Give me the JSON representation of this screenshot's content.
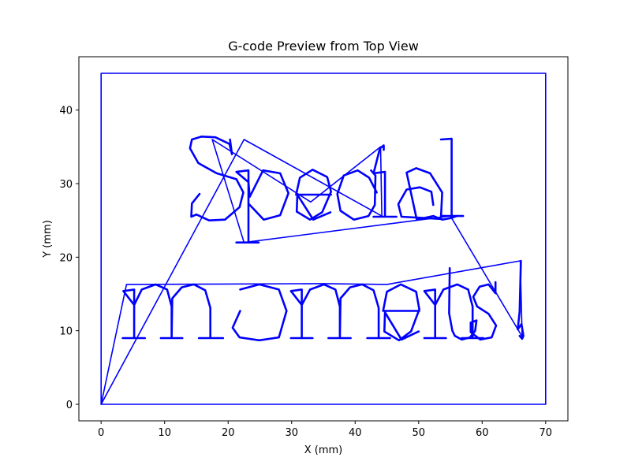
{
  "chart_data": {
    "type": "line",
    "title": "G-code Preview from Top View",
    "xlabel": "X (mm)",
    "ylabel": "Y (mm)",
    "xlim": [
      -3.5,
      73.5
    ],
    "ylim": [
      -2.25,
      47.25
    ],
    "xticks": [
      0,
      10,
      20,
      30,
      40,
      50,
      60,
      70
    ],
    "yticks": [
      0,
      10,
      20,
      30,
      40
    ],
    "grid": false,
    "line_color": "#0000ff",
    "series": [
      {
        "label": "border",
        "x": [
          0,
          70,
          70,
          0,
          0
        ],
        "y": [
          0,
          0,
          45,
          45,
          0
        ]
      },
      {
        "label": "travel moves",
        "x": [
          0,
          4,
          35,
          45,
          66,
          66.3,
          55,
          22.5,
          17.5,
          33,
          44,
          44.2,
          22.5,
          0
        ],
        "y": [
          0,
          16.3,
          16.4,
          16.3,
          19.5,
          9.2,
          25.6,
          22,
          36,
          27.5,
          35,
          25.6,
          36,
          0
        ]
      },
      {
        "label": "path: S",
        "x": [
          15.5,
          14.3,
          14.2,
          15,
          17,
          19.5,
          21.8,
          22.4,
          21.3,
          18.2,
          15.3,
          14,
          14.3,
          15.8,
          18,
          20.2,
          20.6,
          20.3
        ],
        "y": [
          28.6,
          27.3,
          25.5,
          25.8,
          25,
          25.1,
          26.8,
          28.8,
          30.6,
          31.4,
          32.8,
          34.8,
          36,
          36.4,
          36.3,
          35.4,
          34,
          36
        ]
      },
      {
        "label": "path: p",
        "x": [
          21.3,
          24.8,
          23.2,
          23.2,
          21.3,
          23.2,
          23.4,
          25.5,
          28.2,
          29.5,
          28.2,
          25.6,
          23.3
        ],
        "y": [
          22,
          22,
          22,
          31.8,
          31.6,
          30.2,
          28.2,
          31.8,
          31.4,
          28.7,
          25.7,
          25.1,
          27.2
        ]
      },
      {
        "label": "path: e",
        "x": [
          36.2,
          30.7,
          31.3,
          33.3,
          35.6,
          36.2,
          34.8,
          32.9,
          30.8,
          30.9,
          33.4,
          36.1
        ],
        "y": [
          28.5,
          28.5,
          30.8,
          31.9,
          30.9,
          28.9,
          26.1,
          25.1,
          26.2,
          28.5,
          25.1,
          26.1
        ]
      },
      {
        "label": "path: c",
        "x": [
          43.4,
          42.2,
          40.4,
          38.2,
          37.2,
          37.7,
          39.8,
          42.1,
          43.1,
          43.2,
          42.5
        ],
        "y": [
          28.8,
          30.8,
          31.8,
          31.1,
          28.6,
          26.3,
          25.1,
          25.6,
          27.1,
          31.1,
          31.8
        ]
      },
      {
        "label": "path: i",
        "x": [
          42.9,
          46.5,
          44.7,
          44.7,
          42.9,
          43.9,
          44.5,
          44.5
        ],
        "y": [
          25.5,
          25.5,
          25.5,
          31.6,
          31.4,
          34.8,
          35.2,
          34.6
        ]
      },
      {
        "label": "path: a",
        "x": [
          52.3,
          52,
          50.2,
          48.1,
          46.8,
          47.3,
          53.5,
          53.7,
          51.8,
          49.6,
          48.1,
          49.7,
          52.3,
          53.7,
          55,
          56
        ],
        "y": [
          27.1,
          28.9,
          29.5,
          29.2,
          27.2,
          25.5,
          25.2,
          28.8,
          31.4,
          32.1,
          31.5,
          25.1,
          25.6,
          25.1,
          25.3,
          25.6
        ]
      },
      {
        "label": "path: l",
        "x": [
          53.5,
          57,
          55.2,
          55.2,
          53.5
        ],
        "y": [
          25.6,
          25.6,
          25.6,
          36.1,
          36
        ]
      },
      {
        "label": "path: m",
        "x": [
          3.4,
          6.9,
          5.2,
          5.2,
          3.5,
          5.2,
          6.4,
          8.6,
          10.4,
          11.1,
          11.1,
          9.4,
          12.8,
          11.1,
          11.2,
          12.7,
          14.6,
          16.4,
          17.2,
          17.2,
          15.4,
          19.2
        ],
        "y": [
          9,
          9,
          9,
          15.6,
          15.4,
          13.5,
          15.6,
          16.3,
          15.6,
          13.3,
          9,
          9,
          9,
          9,
          14.4,
          15.9,
          16.3,
          15.5,
          13.1,
          9,
          9,
          9
        ]
      },
      {
        "label": "path: o",
        "x": [
          21.9,
          20.7,
          21.8,
          24.9,
          28,
          29.2,
          28,
          24.9,
          21.9
        ],
        "y": [
          12.7,
          10.4,
          9.1,
          8.7,
          9.1,
          12.7,
          15.6,
          16.3,
          15.6
        ]
      },
      {
        "label": "path: m2",
        "x": [
          29.9,
          33.3,
          31.6,
          31.6,
          29.9,
          31.6,
          32.9,
          35.1,
          36.9,
          37.6,
          37.6,
          35.8,
          39.3,
          37.6,
          37.7,
          39.2,
          41.1,
          42.9,
          43.7,
          43.7,
          41.9,
          45.5
        ],
        "y": [
          9,
          9,
          9,
          15.6,
          15.4,
          13.5,
          15.6,
          16.3,
          15.6,
          13.3,
          9,
          9,
          9,
          9,
          14.4,
          15.9,
          16.3,
          15.5,
          13.1,
          9,
          9,
          9
        ]
      },
      {
        "label": "path: e2",
        "x": [
          50.1,
          44.4,
          45,
          47.2,
          49.6,
          50.1,
          48.8,
          46.9,
          44.6,
          44.7,
          47.3,
          50
        ],
        "y": [
          12.7,
          12.7,
          15.3,
          16.3,
          15.3,
          12.9,
          9.9,
          8.7,
          9.9,
          12.5,
          8.8,
          9.9
        ]
      },
      {
        "label": "path: n",
        "x": [
          50.9,
          54.3,
          52.6,
          52.6,
          50.9,
          52.6,
          53.9,
          56.1,
          57.8,
          58.5,
          58.5,
          56.8,
          60.2
        ],
        "y": [
          9,
          9,
          9,
          15.6,
          15.4,
          13.5,
          15.6,
          16.3,
          15.6,
          13.3,
          9,
          9,
          9
        ]
      },
      {
        "label": "path: t",
        "x": [
          54.9,
          54.8,
          55.3,
          55.7,
          56.8,
          58.1,
          58.9,
          59.1,
          58.2
        ],
        "y": [
          18.5,
          12.4,
          10,
          9.3,
          8.8,
          9.1,
          10,
          11.4,
          11.1
        ]
      },
      {
        "label": "path: s",
        "x": [
          62.1,
          62.1,
          61,
          59.6,
          58.6,
          59.2,
          61,
          62.2,
          61.5,
          59.7,
          58.2,
          58.2
        ],
        "y": [
          16.6,
          15.1,
          16.3,
          16,
          14.6,
          13.3,
          12.3,
          10.7,
          9.1,
          8.8,
          9.8,
          11.1
        ]
      },
      {
        "label": "path: exclamation",
        "x": [
          66.1,
          65.9,
          65.6,
          66.2,
          66.5,
          66.3,
          65.9
        ],
        "y": [
          19.5,
          12.6,
          10.2,
          10.9,
          9.3,
          8.9,
          9.3
        ]
      }
    ]
  }
}
